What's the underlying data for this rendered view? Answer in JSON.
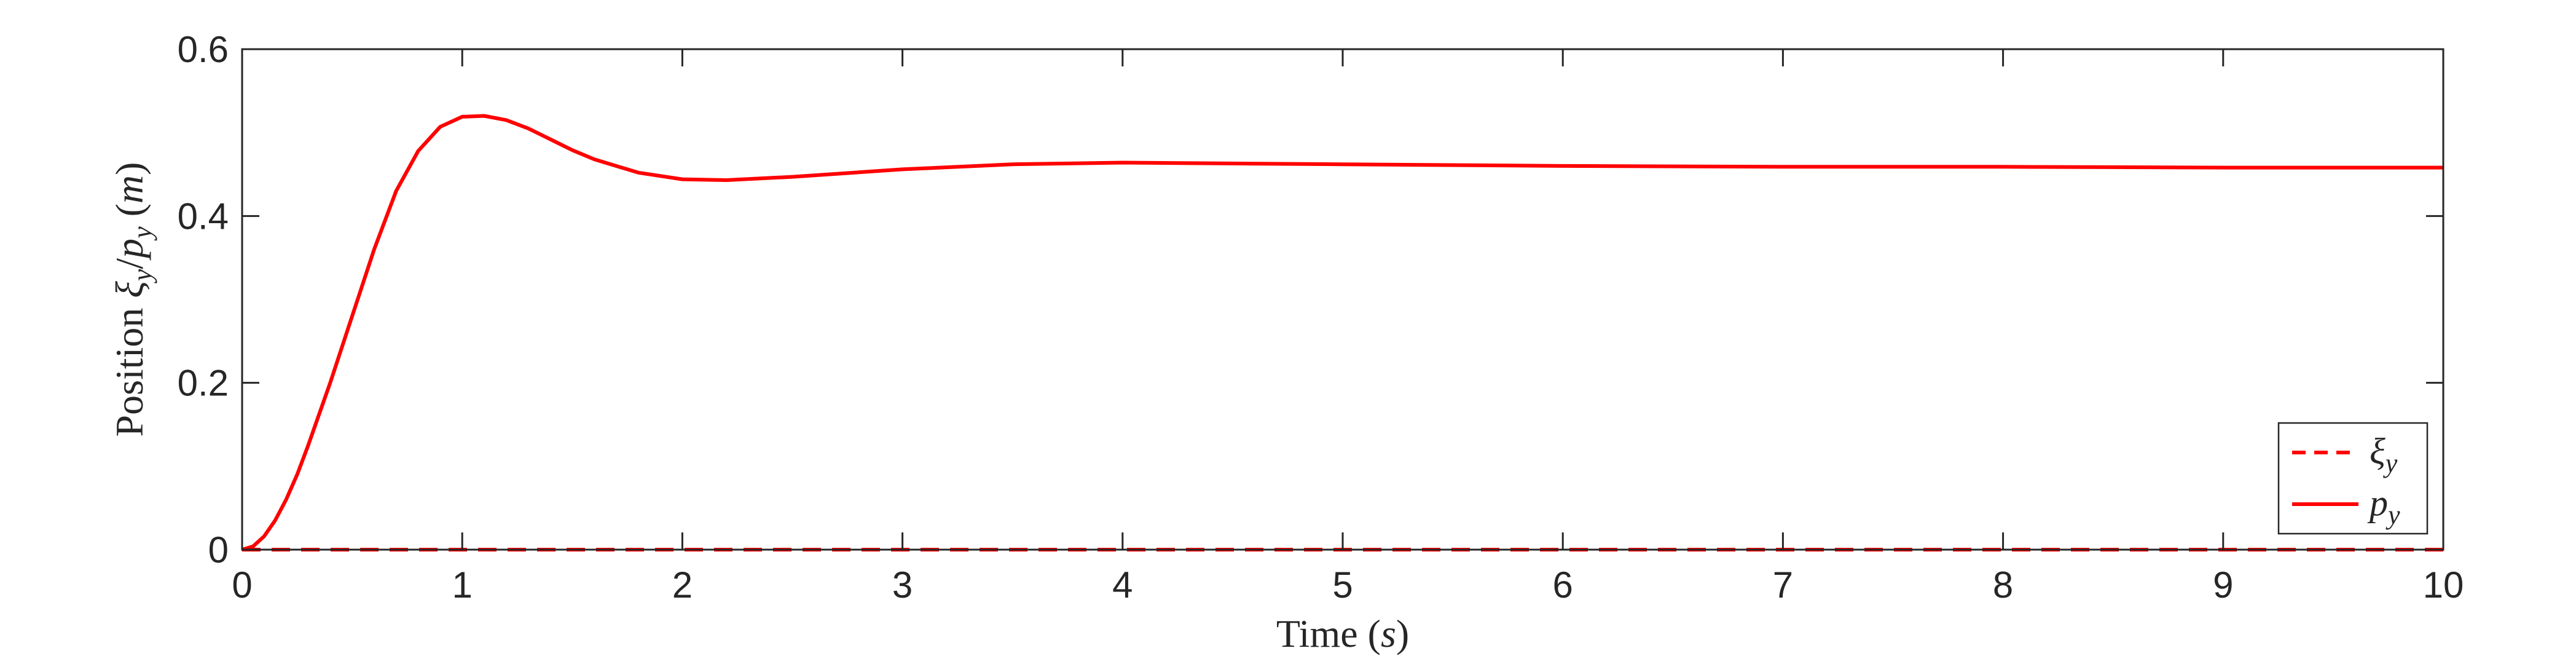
{
  "chart_data": {
    "type": "line",
    "xlabel": {
      "prefix": "Time (",
      "var": "s",
      "suffix": ")"
    },
    "ylabel": {
      "prefix": "Position ",
      "var1": "ξ",
      "sub1": "y",
      "sep": "/",
      "var2": "p",
      "sub2": "y",
      "unit_open": " (",
      "unit": "m",
      "unit_close": ")"
    },
    "xlim": [
      0,
      10
    ],
    "ylim": [
      0,
      0.6
    ],
    "xticks": [
      0,
      1,
      2,
      3,
      4,
      5,
      6,
      7,
      8,
      9,
      10
    ],
    "xtick_labels": [
      "0",
      "1",
      "2",
      "3",
      "4",
      "5",
      "6",
      "7",
      "8",
      "9",
      "10"
    ],
    "yticks": [
      0,
      0.2,
      0.4,
      0.6
    ],
    "ytick_labels": [
      "0",
      "0.2",
      "0.4",
      "0.6"
    ],
    "grid": false,
    "legend_position": "bottom-right",
    "series": [
      {
        "name": "ξ_y",
        "legend": {
          "var": "ξ",
          "sub": "y"
        },
        "color": "#ff0000",
        "style": "dashed",
        "x": [
          0,
          10
        ],
        "y": [
          0,
          0
        ]
      },
      {
        "name": "p_y",
        "legend": {
          "var": "p",
          "sub": "y"
        },
        "color": "#ff0000",
        "style": "solid",
        "x": [
          0,
          0.05,
          0.1,
          0.15,
          0.2,
          0.25,
          0.3,
          0.4,
          0.5,
          0.6,
          0.7,
          0.8,
          0.9,
          1.0,
          1.1,
          1.2,
          1.3,
          1.4,
          1.5,
          1.6,
          1.8,
          2.0,
          2.2,
          2.5,
          3.0,
          3.5,
          4.0,
          4.5,
          5.0,
          6.0,
          7.0,
          8.0,
          9.0,
          10.0
        ],
        "y": [
          0,
          0.004,
          0.016,
          0.035,
          0.06,
          0.09,
          0.125,
          0.2,
          0.28,
          0.36,
          0.43,
          0.478,
          0.507,
          0.519,
          0.52,
          0.515,
          0.505,
          0.492,
          0.479,
          0.468,
          0.452,
          0.444,
          0.443,
          0.447,
          0.456,
          0.462,
          0.464,
          0.463,
          0.462,
          0.46,
          0.459,
          0.459,
          0.458,
          0.458
        ]
      }
    ]
  }
}
